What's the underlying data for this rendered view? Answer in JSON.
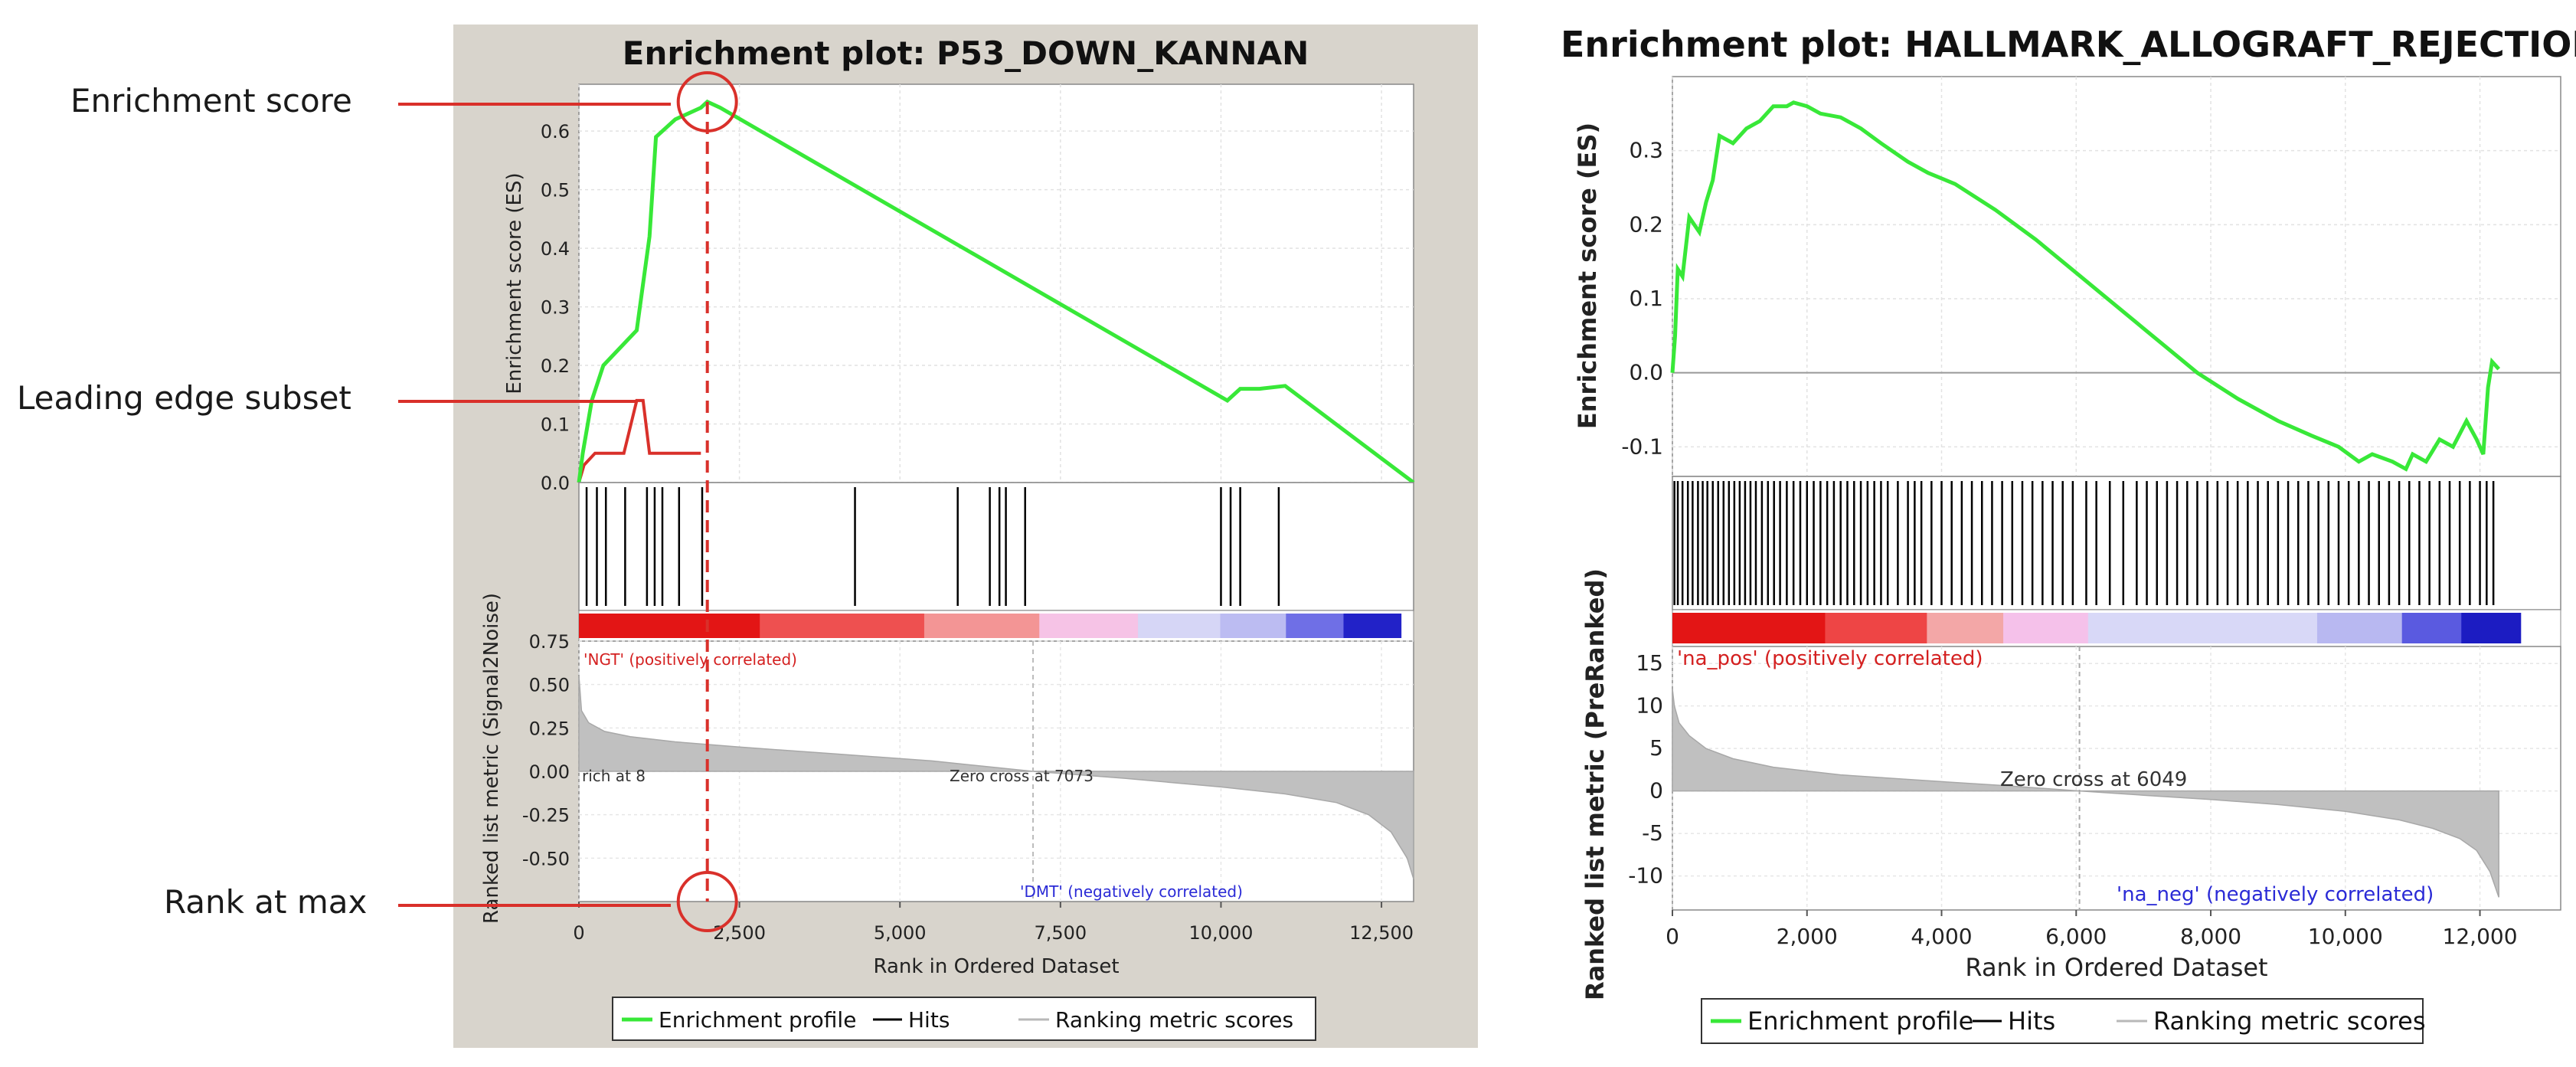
{
  "annotations": {
    "enrichment_score": "Enrichment score",
    "leading_edge": "Leading edge subset",
    "rank_at_max": "Rank at max"
  },
  "colors": {
    "profile": "#38e838",
    "hits": "#000000",
    "metric": "#b8b8b8",
    "annotation": "#d9302a",
    "left_panel_bg": "#d8d4cc",
    "pos_label": "#d42020",
    "neg_label": "#2a2ad6"
  },
  "chart_data": [
    {
      "type": "line",
      "title": "Enrichment plot: P53_DOWN_KANNAN",
      "xlabel": "Rank in Ordered Dataset",
      "ylabel": "Enrichment score (ES)",
      "xlim": [
        0,
        13000
      ],
      "ylim": [
        0,
        0.68
      ],
      "x_ticks": [
        0,
        2500,
        5000,
        7500,
        10000,
        12500
      ],
      "x_tick_labels": [
        "0",
        "2,500",
        "5,000",
        "7,500",
        "10,000",
        "12,500"
      ],
      "y_ticks": [
        0.0,
        0.1,
        0.2,
        0.3,
        0.4,
        0.5,
        0.6
      ],
      "y_tick_labels": [
        "0.0",
        "0.1",
        "0.2",
        "0.3",
        "0.4",
        "0.5",
        "0.6"
      ],
      "profile_x": [
        0,
        60,
        200,
        380,
        900,
        1100,
        1200,
        1500,
        1900,
        2000,
        2200,
        10100,
        10300,
        10600,
        11000,
        13000
      ],
      "profile_y": [
        0.0,
        0.05,
        0.14,
        0.2,
        0.26,
        0.42,
        0.59,
        0.62,
        0.64,
        0.65,
        0.64,
        0.14,
        0.16,
        0.16,
        0.165,
        0.0
      ],
      "hits": [
        120,
        280,
        420,
        720,
        1060,
        1180,
        1300,
        1560,
        1920,
        4300,
        5900,
        6400,
        6550,
        6650,
        6950,
        10000,
        10150,
        10300,
        10900
      ],
      "leading_edge_x": [
        0,
        80,
        250,
        700,
        900,
        1000,
        1100,
        1900
      ],
      "leading_edge_y": [
        0.0,
        0.03,
        0.05,
        0.05,
        0.14,
        0.14,
        0.05,
        0.05
      ],
      "rank_at_max": 2000,
      "metric_ylabel": "Ranked list metric (Signal2Noise)",
      "metric_ylim": [
        -0.75,
        0.75
      ],
      "metric_y_ticks": [
        0.75,
        0.5,
        0.25,
        0.0,
        -0.25,
        -0.5
      ],
      "metric_y_tick_labels": [
        "0.75",
        "0.50",
        "0.25",
        "0.00",
        "-0.25",
        "-0.50"
      ],
      "metric_curve_x": [
        0,
        40,
        150,
        400,
        800,
        1500,
        2500,
        4000,
        5500,
        7073,
        8500,
        10000,
        11000,
        11800,
        12300,
        12650,
        12900,
        13000
      ],
      "metric_curve_y": [
        0.55,
        0.35,
        0.28,
        0.23,
        0.2,
        0.17,
        0.14,
        0.1,
        0.06,
        0.0,
        -0.04,
        -0.09,
        -0.13,
        -0.18,
        -0.25,
        -0.35,
        -0.5,
        -0.62
      ],
      "pos_label": "'NGT' (positively correlated)",
      "neg_label": "'DMT' (negatively correlated)",
      "zero_cross_label": "Zero cross at 7073",
      "zero_cross": 7073,
      "left_note": "rich at 8",
      "legend": [
        "Enrichment profile",
        "Hits",
        "Ranking metric scores"
      ]
    },
    {
      "type": "line",
      "title": "Enrichment plot: HALLMARK_ALLOGRAFT_REJECTION",
      "xlabel": "Rank in Ordered Dataset",
      "ylabel": "Enrichment score (ES)",
      "xlim": [
        0,
        13200
      ],
      "ylim": [
        -0.14,
        0.4
      ],
      "x_ticks": [
        0,
        2000,
        4000,
        6000,
        8000,
        10000,
        12000
      ],
      "x_tick_labels": [
        "0",
        "2,000",
        "4,000",
        "6,000",
        "8,000",
        "10,000",
        "12,000"
      ],
      "y_ticks": [
        0.3,
        0.2,
        0.1,
        0.0,
        -0.1
      ],
      "y_tick_labels": [
        "0.3",
        "0.2",
        "0.1",
        "0.0",
        "-0.1"
      ],
      "profile_x": [
        0,
        40,
        80,
        150,
        250,
        400,
        500,
        600,
        700,
        900,
        1100,
        1300,
        1500,
        1700,
        1800,
        2000,
        2200,
        2500,
        2800,
        3100,
        3500,
        3800,
        4200,
        4800,
        5400,
        6000,
        6600,
        7200,
        7800,
        8400,
        9000,
        9500,
        9900,
        10200,
        10400,
        10700,
        10900,
        11000,
        11200,
        11400,
        11600,
        11800,
        11950,
        12050,
        12120,
        12180,
        12280
      ],
      "profile_y": [
        0.0,
        0.05,
        0.14,
        0.13,
        0.21,
        0.19,
        0.23,
        0.26,
        0.32,
        0.31,
        0.33,
        0.34,
        0.36,
        0.36,
        0.365,
        0.36,
        0.35,
        0.345,
        0.33,
        0.31,
        0.285,
        0.27,
        0.255,
        0.22,
        0.18,
        0.135,
        0.09,
        0.045,
        0.0,
        -0.035,
        -0.065,
        -0.085,
        -0.1,
        -0.12,
        -0.11,
        -0.12,
        -0.13,
        -0.11,
        -0.12,
        -0.09,
        -0.1,
        -0.065,
        -0.09,
        -0.11,
        -0.02,
        0.015,
        0.005
      ],
      "hits": [
        30,
        80,
        150,
        230,
        300,
        380,
        450,
        520,
        600,
        680,
        760,
        840,
        920,
        1000,
        1080,
        1160,
        1240,
        1330,
        1420,
        1510,
        1600,
        1700,
        1800,
        1900,
        2000,
        2100,
        2200,
        2300,
        2400,
        2500,
        2600,
        2700,
        2800,
        2900,
        3000,
        3100,
        3200,
        3350,
        3500,
        3600,
        3700,
        3850,
        4000,
        4150,
        4300,
        4450,
        4600,
        4750,
        4900,
        5050,
        5200,
        5350,
        5500,
        5650,
        5800,
        5950,
        6150,
        6300,
        6500,
        6700,
        6900,
        7050,
        7200,
        7350,
        7500,
        7650,
        7800,
        7950,
        8100,
        8250,
        8400,
        8550,
        8700,
        8850,
        9000,
        9150,
        9300,
        9450,
        9600,
        9750,
        9900,
        10050,
        10200,
        10350,
        10500,
        10650,
        10800,
        10950,
        11100,
        11250,
        11400,
        11550,
        11700,
        11850,
        12000,
        12100,
        12200
      ],
      "metric_ylabel": "Ranked list metric (PreRanked)",
      "metric_ylim": [
        -14,
        17
      ],
      "metric_y_ticks": [
        15,
        10,
        5,
        0,
        -5,
        -10
      ],
      "metric_y_tick_labels": [
        "15",
        "10",
        "5",
        "0",
        "-5",
        "-10"
      ],
      "metric_curve_x": [
        0,
        30,
        100,
        250,
        500,
        900,
        1500,
        2500,
        3800,
        5000,
        6049,
        7000,
        8000,
        9000,
        10000,
        10800,
        11300,
        11700,
        11950,
        12150,
        12280
      ],
      "metric_curve_y": [
        12,
        10,
        8,
        6.5,
        5,
        3.8,
        2.8,
        1.9,
        1.2,
        0.6,
        0.0,
        -0.5,
        -1.0,
        -1.6,
        -2.4,
        -3.4,
        -4.4,
        -5.6,
        -7,
        -9.5,
        -12.5
      ],
      "pos_label": "'na_pos' (positively correlated)",
      "neg_label": "'na_neg' (negatively correlated)",
      "zero_cross_label": "Zero cross at 6049",
      "zero_cross": 6049,
      "legend": [
        "Enrichment profile",
        "Hits",
        "Ranking metric scores"
      ]
    }
  ]
}
